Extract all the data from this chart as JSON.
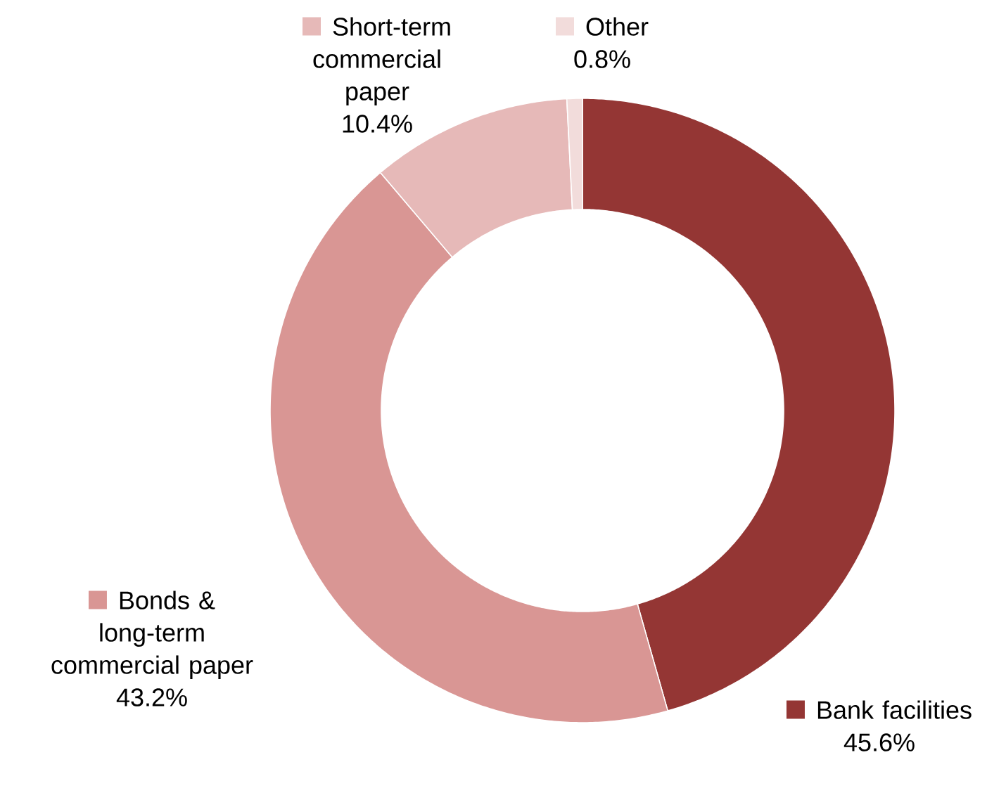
{
  "chart_data": {
    "type": "donut",
    "categories": [
      "Bank facilities",
      "Bonds & long-term commercial paper",
      "Short-term commercial paper",
      "Other"
    ],
    "values": [
      45.6,
      43.2,
      10.4,
      0.8
    ],
    "value_labels": [
      "45.6%",
      "43.2%",
      "10.4%",
      "0.8%"
    ],
    "colors": [
      "#943634",
      "#d99694",
      "#e6b9b8",
      "#f2dcdb"
    ],
    "legend": "top"
  }
}
